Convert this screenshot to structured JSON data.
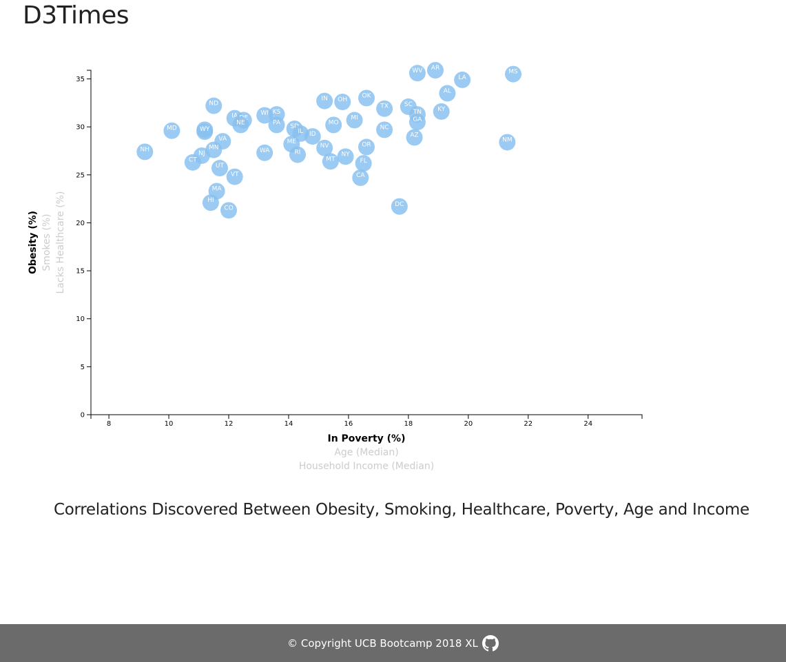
{
  "page": {
    "title": "D3Times",
    "subtitle": "Correlations Discovered Between Obesity, Smoking, Healthcare, Poverty, Age and Income",
    "footer_text": "© Copyright UCB Bootcamp 2018 XL",
    "footer_icon": "github-icon"
  },
  "chart_data": {
    "type": "scatter",
    "x_axis": {
      "active_label": "In Poverty (%)",
      "inactive_labels": [
        "Age (Median)",
        "Household Income (Median)"
      ],
      "ticks": [
        8,
        10,
        12,
        14,
        16,
        18,
        20,
        22,
        24
      ],
      "range": [
        7.4,
        25.8
      ]
    },
    "y_axis": {
      "active_label": "Obesity (%)",
      "inactive_labels": [
        "Smokes (%)",
        "Lacks Healthcare (%)"
      ],
      "ticks": [
        0,
        5,
        10,
        15,
        20,
        25,
        30,
        35
      ],
      "range": [
        0,
        35.9
      ]
    },
    "grid": false,
    "colors": {
      "marker_fill": "#89c1f0",
      "marker_label": "#ffffff",
      "axis": "#000000",
      "active_label": "#000000",
      "inactive_label": "#cccccc"
    },
    "points": [
      {
        "abbr": "WV",
        "x": 18.3,
        "y": 35.6
      },
      {
        "abbr": "AR",
        "x": 18.9,
        "y": 35.9
      },
      {
        "abbr": "MS",
        "x": 21.5,
        "y": 35.5
      },
      {
        "abbr": "LA",
        "x": 19.8,
        "y": 34.9
      },
      {
        "abbr": "AL",
        "x": 19.3,
        "y": 33.5
      },
      {
        "abbr": "OK",
        "x": 16.6,
        "y": 33.0
      },
      {
        "abbr": "IN",
        "x": 15.2,
        "y": 32.7
      },
      {
        "abbr": "OH",
        "x": 15.8,
        "y": 32.6
      },
      {
        "abbr": "ND",
        "x": 11.5,
        "y": 32.2
      },
      {
        "abbr": "SC",
        "x": 18.0,
        "y": 32.1
      },
      {
        "abbr": "TX",
        "x": 17.2,
        "y": 31.9
      },
      {
        "abbr": "KY",
        "x": 19.1,
        "y": 31.6
      },
      {
        "abbr": "TN",
        "x": 18.3,
        "y": 31.3
      },
      {
        "abbr": "WI",
        "x": 13.2,
        "y": 31.2
      },
      {
        "abbr": "KS",
        "x": 13.6,
        "y": 31.3
      },
      {
        "abbr": "IA",
        "x": 12.2,
        "y": 30.9
      },
      {
        "abbr": "DE",
        "x": 12.5,
        "y": 30.7
      },
      {
        "abbr": "MI",
        "x": 16.2,
        "y": 30.7
      },
      {
        "abbr": "GA",
        "x": 18.3,
        "y": 30.5
      },
      {
        "abbr": "NE",
        "x": 12.4,
        "y": 30.2
      },
      {
        "abbr": "PA",
        "x": 13.6,
        "y": 30.2
      },
      {
        "abbr": "MO",
        "x": 15.5,
        "y": 30.2
      },
      {
        "abbr": "SD",
        "x": 14.2,
        "y": 29.8
      },
      {
        "abbr": "NC",
        "x": 17.2,
        "y": 29.7
      },
      {
        "abbr": "MD",
        "x": 10.1,
        "y": 29.6
      },
      {
        "abbr": "AK",
        "x": 11.2,
        "y": 29.7
      },
      {
        "abbr": "WY",
        "x": 11.2,
        "y": 29.5
      },
      {
        "abbr": "IL",
        "x": 14.4,
        "y": 29.3
      },
      {
        "abbr": "ID",
        "x": 14.8,
        "y": 29.0
      },
      {
        "abbr": "AZ",
        "x": 18.2,
        "y": 28.9
      },
      {
        "abbr": "VA",
        "x": 11.8,
        "y": 28.5
      },
      {
        "abbr": "NM",
        "x": 21.3,
        "y": 28.4
      },
      {
        "abbr": "ME",
        "x": 14.1,
        "y": 28.2
      },
      {
        "abbr": "OR",
        "x": 16.6,
        "y": 27.9
      },
      {
        "abbr": "NV",
        "x": 15.2,
        "y": 27.8
      },
      {
        "abbr": "MN",
        "x": 11.5,
        "y": 27.6
      },
      {
        "abbr": "NH",
        "x": 9.2,
        "y": 27.4
      },
      {
        "abbr": "WA",
        "x": 13.2,
        "y": 27.3
      },
      {
        "abbr": "RI",
        "x": 14.3,
        "y": 27.1
      },
      {
        "abbr": "NJ",
        "x": 11.1,
        "y": 27.0
      },
      {
        "abbr": "NY",
        "x": 15.9,
        "y": 26.9
      },
      {
        "abbr": "MT",
        "x": 15.4,
        "y": 26.4
      },
      {
        "abbr": "CT",
        "x": 10.8,
        "y": 26.3
      },
      {
        "abbr": "FL",
        "x": 16.5,
        "y": 26.2
      },
      {
        "abbr": "UT",
        "x": 11.7,
        "y": 25.7
      },
      {
        "abbr": "VT",
        "x": 12.2,
        "y": 24.8
      },
      {
        "abbr": "CA",
        "x": 16.4,
        "y": 24.7
      },
      {
        "abbr": "MA",
        "x": 11.6,
        "y": 23.3
      },
      {
        "abbr": "HI",
        "x": 11.4,
        "y": 22.1
      },
      {
        "abbr": "DC",
        "x": 17.7,
        "y": 21.7
      },
      {
        "abbr": "CO",
        "x": 12.0,
        "y": 21.3
      }
    ]
  }
}
